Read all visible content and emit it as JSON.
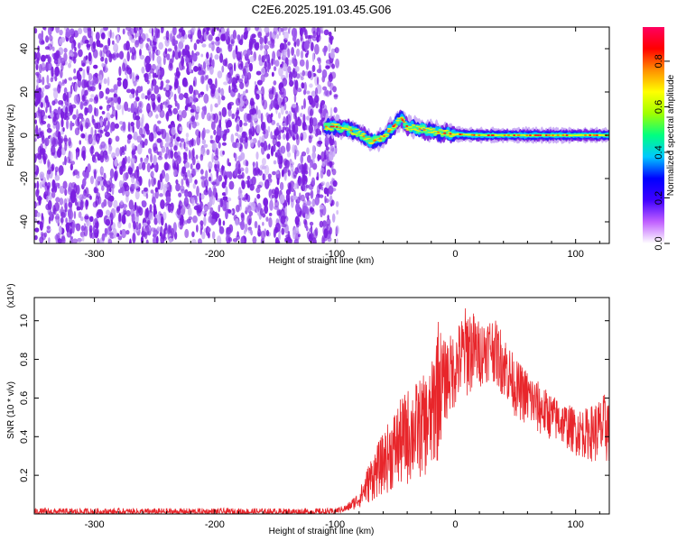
{
  "title": "C2E6.2025.191.03.45.G06",
  "colors": {
    "snr_line": "#e8262b",
    "spectrogram_noise": "#7b1fe0",
    "spectrogram_noise_light": "#c8a8f5"
  },
  "chart_data": [
    {
      "type": "heatmap",
      "name": "spectrogram",
      "xlabel": "Height of straight line (km)",
      "ylabel": "Frequency (Hz)",
      "xlim": [
        -350,
        128
      ],
      "ylim": [
        -50,
        50
      ],
      "x_ticks": [
        -300,
        -200,
        -100,
        0,
        100
      ],
      "x_tick_labels": [
        "-300",
        "-200",
        "-100",
        "0",
        "100"
      ],
      "y_ticks": [
        -40,
        -20,
        0,
        20,
        40
      ],
      "y_tick_labels": [
        "-40",
        "-20",
        "0",
        "20",
        "40"
      ],
      "noise_region_x": [
        -350,
        -98
      ],
      "signal_trace": {
        "x": [
          -108,
          -100,
          -90,
          -80,
          -70,
          -60,
          -50,
          -45,
          -40,
          -30,
          -20,
          -10,
          0,
          20,
          40,
          60,
          80,
          100,
          128
        ],
        "y": [
          4,
          4,
          3,
          1,
          -3,
          -1,
          5,
          8,
          4,
          3,
          2,
          1,
          0.5,
          0,
          0,
          0,
          0,
          0,
          0
        ]
      },
      "colorbar": {
        "label": "Normalized spectral amplitude",
        "range": [
          0,
          0.95
        ],
        "ticks": [
          0.0,
          0.2,
          0.4,
          0.6,
          0.8
        ],
        "tick_labels": [
          "0.0",
          "0.2",
          "0.4",
          "0.6",
          "0.8"
        ],
        "colors": [
          "#ffffff",
          "#c060ff",
          "#4000ff",
          "#0000ff",
          "#00c8ff",
          "#00ff80",
          "#a0ff00",
          "#ffff00",
          "#ff9000",
          "#ff0000",
          "#ff0060"
        ]
      }
    },
    {
      "type": "line",
      "name": "snr",
      "xlabel": "Height of straight line (km)",
      "ylabel": "SNR (10 * v/v)",
      "y_multiplier": "(x10⁴)",
      "xlim": [
        -350,
        128
      ],
      "ylim": [
        0,
        1.12
      ],
      "x_ticks": [
        -300,
        -200,
        -100,
        0,
        100
      ],
      "x_tick_labels": [
        "-300",
        "-200",
        "-100",
        "0",
        "100"
      ],
      "y_ticks": [
        0.2,
        0.4,
        0.6,
        0.8,
        1.0
      ],
      "y_tick_labels": [
        "0.2",
        "0.4",
        "0.6",
        "0.8",
        "1.0"
      ],
      "envelope": {
        "x": [
          -350,
          -100,
          -90,
          -80,
          -70,
          -60,
          -50,
          -40,
          -30,
          -20,
          -15,
          -10,
          0,
          10,
          20,
          30,
          40,
          50,
          60,
          70,
          80,
          90,
          100,
          110,
          120,
          128
        ],
        "low": [
          0.0,
          0.0,
          0.01,
          0.03,
          0.06,
          0.1,
          0.12,
          0.14,
          0.18,
          0.2,
          0.25,
          0.45,
          0.55,
          0.6,
          0.65,
          0.7,
          0.6,
          0.5,
          0.45,
          0.4,
          0.38,
          0.35,
          0.3,
          0.28,
          0.25,
          0.25
        ],
        "high": [
          0.03,
          0.03,
          0.05,
          0.12,
          0.3,
          0.42,
          0.55,
          0.65,
          0.7,
          0.75,
          1.05,
          0.9,
          0.95,
          1.1,
          1.0,
          1.03,
          0.95,
          0.8,
          0.75,
          0.68,
          0.62,
          0.58,
          0.55,
          0.55,
          0.6,
          0.65
        ]
      }
    }
  ]
}
